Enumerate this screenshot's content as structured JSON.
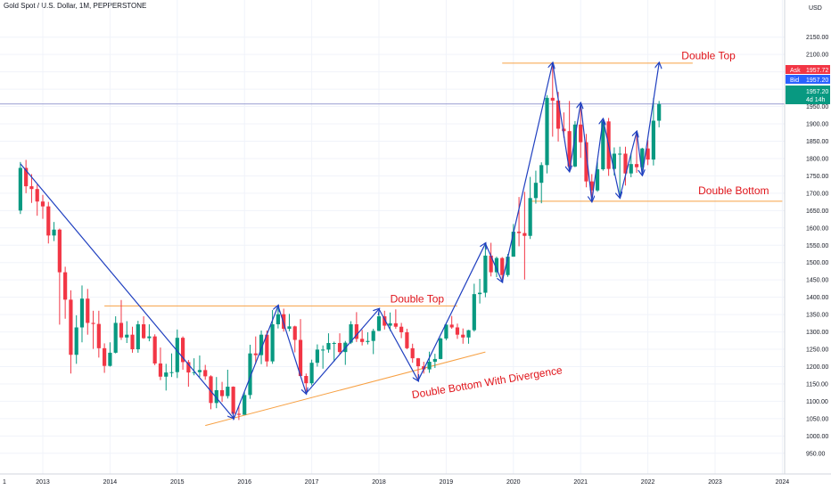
{
  "header": {
    "title": "Gold Spot / U.S. Dollar, 1M, PEPPERSTONE",
    "currency": "USD"
  },
  "colors": {
    "up": "#089981",
    "down": "#f23645",
    "trend": "#2040c0",
    "level": "#f7a043",
    "annotation": "#e0141a",
    "price_line": "#7b7fc4"
  },
  "quote_tags": {
    "ask_label": "Ask",
    "ask_value": "1957.72",
    "bid_label": "Bid",
    "bid_value": "1957.20",
    "last_value": "1957.20",
    "countdown": "4d 14h"
  },
  "annotations": {
    "double_top_2022": "Double Top",
    "double_bottom_2021": "Double Bottom",
    "double_top_2016": "Double Top",
    "double_bottom_divergence": "Double Bottom With Divergence"
  },
  "chart_data": {
    "type": "candlestick",
    "title": "Gold Spot / U.S. Dollar, 1M, PEPPERSTONE",
    "ylabel": "USD",
    "ylim": [
      930,
      2200
    ],
    "x_ticks": [
      "1",
      "2013",
      "2014",
      "2015",
      "2016",
      "2017",
      "2018",
      "2019",
      "2020",
      "2021",
      "2022",
      "2023",
      "2024"
    ],
    "y_ticks": [
      "2150.00",
      "2100.00",
      "2050.00",
      "2000.00",
      "1950.00",
      "1900.00",
      "1850.00",
      "1800.00",
      "1750.00",
      "1700.00",
      "1650.00",
      "1600.00",
      "1550.00",
      "1500.00",
      "1450.00",
      "1400.00",
      "1350.00",
      "1300.00",
      "1250.00",
      "1200.00",
      "1150.00",
      "1100.00",
      "1050.00",
      "1000.00",
      "950.00"
    ],
    "ohlc": [
      {
        "date": "2012-09",
        "open": 1650,
        "high": 1790,
        "low": 1640,
        "close": 1773
      },
      {
        "date": "2012-10",
        "open": 1773,
        "high": 1796,
        "low": 1700,
        "close": 1720
      },
      {
        "date": "2012-11",
        "open": 1720,
        "high": 1755,
        "low": 1672,
        "close": 1712
      },
      {
        "date": "2012-12",
        "open": 1712,
        "high": 1725,
        "low": 1635,
        "close": 1676
      },
      {
        "date": "2013-01",
        "open": 1676,
        "high": 1695,
        "low": 1626,
        "close": 1662
      },
      {
        "date": "2013-02",
        "open": 1662,
        "high": 1675,
        "low": 1555,
        "close": 1578
      },
      {
        "date": "2013-03",
        "open": 1578,
        "high": 1617,
        "low": 1562,
        "close": 1595
      },
      {
        "date": "2013-04",
        "open": 1595,
        "high": 1598,
        "low": 1321,
        "close": 1472
      },
      {
        "date": "2013-05",
        "open": 1472,
        "high": 1488,
        "low": 1338,
        "close": 1393
      },
      {
        "date": "2013-06",
        "open": 1393,
        "high": 1420,
        "low": 1180,
        "close": 1234
      },
      {
        "date": "2013-07",
        "open": 1234,
        "high": 1348,
        "low": 1208,
        "close": 1313
      },
      {
        "date": "2013-08",
        "open": 1313,
        "high": 1434,
        "low": 1270,
        "close": 1396
      },
      {
        "date": "2013-09",
        "open": 1396,
        "high": 1424,
        "low": 1292,
        "close": 1326
      },
      {
        "date": "2013-10",
        "open": 1326,
        "high": 1361,
        "low": 1251,
        "close": 1323
      },
      {
        "date": "2013-11",
        "open": 1323,
        "high": 1361,
        "low": 1226,
        "close": 1253
      },
      {
        "date": "2013-12",
        "open": 1253,
        "high": 1267,
        "low": 1182,
        "close": 1202
      },
      {
        "date": "2014-01",
        "open": 1202,
        "high": 1270,
        "low": 1200,
        "close": 1240
      },
      {
        "date": "2014-02",
        "open": 1240,
        "high": 1345,
        "low": 1238,
        "close": 1326
      },
      {
        "date": "2014-03",
        "open": 1326,
        "high": 1392,
        "low": 1277,
        "close": 1284
      },
      {
        "date": "2014-04",
        "open": 1284,
        "high": 1331,
        "low": 1268,
        "close": 1292
      },
      {
        "date": "2014-05",
        "open": 1292,
        "high": 1315,
        "low": 1240,
        "close": 1250
      },
      {
        "date": "2014-06",
        "open": 1250,
        "high": 1332,
        "low": 1240,
        "close": 1322
      },
      {
        "date": "2014-07",
        "open": 1322,
        "high": 1345,
        "low": 1280,
        "close": 1282
      },
      {
        "date": "2014-08",
        "open": 1282,
        "high": 1322,
        "low": 1273,
        "close": 1287
      },
      {
        "date": "2014-09",
        "open": 1287,
        "high": 1293,
        "low": 1204,
        "close": 1209
      },
      {
        "date": "2014-10",
        "open": 1209,
        "high": 1255,
        "low": 1161,
        "close": 1171
      },
      {
        "date": "2014-11",
        "open": 1171,
        "high": 1208,
        "low": 1131,
        "close": 1183
      },
      {
        "date": "2014-12",
        "open": 1183,
        "high": 1238,
        "low": 1170,
        "close": 1184
      },
      {
        "date": "2015-01",
        "open": 1184,
        "high": 1307,
        "low": 1167,
        "close": 1283
      },
      {
        "date": "2015-02",
        "open": 1283,
        "high": 1287,
        "low": 1191,
        "close": 1213
      },
      {
        "date": "2015-03",
        "open": 1213,
        "high": 1219,
        "low": 1142,
        "close": 1183
      },
      {
        "date": "2015-04",
        "open": 1183,
        "high": 1224,
        "low": 1175,
        "close": 1184
      },
      {
        "date": "2015-05",
        "open": 1184,
        "high": 1232,
        "low": 1170,
        "close": 1190
      },
      {
        "date": "2015-06",
        "open": 1190,
        "high": 1205,
        "low": 1162,
        "close": 1172
      },
      {
        "date": "2015-07",
        "open": 1172,
        "high": 1175,
        "low": 1077,
        "close": 1095
      },
      {
        "date": "2015-08",
        "open": 1095,
        "high": 1170,
        "low": 1080,
        "close": 1132
      },
      {
        "date": "2015-09",
        "open": 1132,
        "high": 1156,
        "low": 1098,
        "close": 1115
      },
      {
        "date": "2015-10",
        "open": 1115,
        "high": 1191,
        "low": 1108,
        "close": 1142
      },
      {
        "date": "2015-11",
        "open": 1142,
        "high": 1143,
        "low": 1052,
        "close": 1064
      },
      {
        "date": "2015-12",
        "open": 1064,
        "high": 1088,
        "low": 1046,
        "close": 1061
      },
      {
        "date": "2016-01",
        "open": 1061,
        "high": 1126,
        "low": 1061,
        "close": 1118
      },
      {
        "date": "2016-02",
        "open": 1118,
        "high": 1263,
        "low": 1107,
        "close": 1238
      },
      {
        "date": "2016-03",
        "open": 1238,
        "high": 1287,
        "low": 1208,
        "close": 1233
      },
      {
        "date": "2016-04",
        "open": 1233,
        "high": 1304,
        "low": 1207,
        "close": 1292
      },
      {
        "date": "2016-05",
        "open": 1292,
        "high": 1304,
        "low": 1200,
        "close": 1215
      },
      {
        "date": "2016-06",
        "open": 1215,
        "high": 1363,
        "low": 1208,
        "close": 1322
      },
      {
        "date": "2016-07",
        "open": 1322,
        "high": 1375,
        "low": 1310,
        "close": 1351
      },
      {
        "date": "2016-08",
        "open": 1351,
        "high": 1367,
        "low": 1301,
        "close": 1309
      },
      {
        "date": "2016-09",
        "open": 1309,
        "high": 1352,
        "low": 1302,
        "close": 1316
      },
      {
        "date": "2016-10",
        "open": 1316,
        "high": 1318,
        "low": 1241,
        "close": 1277
      },
      {
        "date": "2016-11",
        "open": 1277,
        "high": 1337,
        "low": 1171,
        "close": 1173
      },
      {
        "date": "2016-12",
        "open": 1173,
        "high": 1180,
        "low": 1123,
        "close": 1152
      },
      {
        "date": "2017-01",
        "open": 1152,
        "high": 1220,
        "low": 1146,
        "close": 1211
      },
      {
        "date": "2017-02",
        "open": 1211,
        "high": 1264,
        "low": 1200,
        "close": 1249
      },
      {
        "date": "2017-03",
        "open": 1249,
        "high": 1261,
        "low": 1194,
        "close": 1249
      },
      {
        "date": "2017-04",
        "open": 1249,
        "high": 1296,
        "low": 1240,
        "close": 1268
      },
      {
        "date": "2017-05",
        "open": 1268,
        "high": 1272,
        "low": 1214,
        "close": 1268
      },
      {
        "date": "2017-06",
        "open": 1268,
        "high": 1296,
        "low": 1236,
        "close": 1242
      },
      {
        "date": "2017-07",
        "open": 1242,
        "high": 1274,
        "low": 1205,
        "close": 1269
      },
      {
        "date": "2017-08",
        "open": 1269,
        "high": 1331,
        "low": 1265,
        "close": 1322
      },
      {
        "date": "2017-09",
        "open": 1322,
        "high": 1357,
        "low": 1271,
        "close": 1280
      },
      {
        "date": "2017-10",
        "open": 1280,
        "high": 1306,
        "low": 1261,
        "close": 1271
      },
      {
        "date": "2017-11",
        "open": 1271,
        "high": 1299,
        "low": 1264,
        "close": 1274
      },
      {
        "date": "2017-12",
        "open": 1274,
        "high": 1309,
        "low": 1236,
        "close": 1303
      },
      {
        "date": "2018-01",
        "open": 1303,
        "high": 1366,
        "low": 1302,
        "close": 1345
      },
      {
        "date": "2018-02",
        "open": 1345,
        "high": 1361,
        "low": 1307,
        "close": 1318
      },
      {
        "date": "2018-03",
        "open": 1318,
        "high": 1356,
        "low": 1303,
        "close": 1325
      },
      {
        "date": "2018-04",
        "open": 1325,
        "high": 1365,
        "low": 1309,
        "close": 1315
      },
      {
        "date": "2018-05",
        "open": 1315,
        "high": 1326,
        "low": 1282,
        "close": 1299
      },
      {
        "date": "2018-06",
        "open": 1299,
        "high": 1309,
        "low": 1250,
        "close": 1253
      },
      {
        "date": "2018-07",
        "open": 1253,
        "high": 1266,
        "low": 1211,
        "close": 1224
      },
      {
        "date": "2018-08",
        "open": 1224,
        "high": 1225,
        "low": 1160,
        "close": 1201
      },
      {
        "date": "2018-09",
        "open": 1201,
        "high": 1214,
        "low": 1180,
        "close": 1192
      },
      {
        "date": "2018-10",
        "open": 1192,
        "high": 1243,
        "low": 1182,
        "close": 1214
      },
      {
        "date": "2018-11",
        "open": 1214,
        "high": 1237,
        "low": 1196,
        "close": 1222
      },
      {
        "date": "2018-12",
        "open": 1222,
        "high": 1284,
        "low": 1221,
        "close": 1281
      },
      {
        "date": "2019-01",
        "open": 1281,
        "high": 1326,
        "low": 1276,
        "close": 1321
      },
      {
        "date": "2019-02",
        "open": 1321,
        "high": 1346,
        "low": 1309,
        "close": 1313
      },
      {
        "date": "2019-03",
        "open": 1313,
        "high": 1324,
        "low": 1280,
        "close": 1292
      },
      {
        "date": "2019-04",
        "open": 1292,
        "high": 1310,
        "low": 1266,
        "close": 1284
      },
      {
        "date": "2019-05",
        "open": 1284,
        "high": 1306,
        "low": 1266,
        "close": 1305
      },
      {
        "date": "2019-06",
        "open": 1305,
        "high": 1439,
        "low": 1301,
        "close": 1409
      },
      {
        "date": "2019-07",
        "open": 1409,
        "high": 1453,
        "low": 1382,
        "close": 1413
      },
      {
        "date": "2019-08",
        "open": 1413,
        "high": 1555,
        "low": 1400,
        "close": 1520
      },
      {
        "date": "2019-09",
        "open": 1520,
        "high": 1557,
        "low": 1460,
        "close": 1472
      },
      {
        "date": "2019-10",
        "open": 1472,
        "high": 1517,
        "low": 1458,
        "close": 1513
      },
      {
        "date": "2019-11",
        "open": 1513,
        "high": 1516,
        "low": 1445,
        "close": 1464
      },
      {
        "date": "2019-12",
        "open": 1464,
        "high": 1525,
        "low": 1459,
        "close": 1517
      },
      {
        "date": "2020-01",
        "open": 1517,
        "high": 1611,
        "low": 1517,
        "close": 1589
      },
      {
        "date": "2020-02",
        "open": 1589,
        "high": 1689,
        "low": 1547,
        "close": 1585
      },
      {
        "date": "2020-03",
        "open": 1585,
        "high": 1704,
        "low": 1451,
        "close": 1577
      },
      {
        "date": "2020-04",
        "open": 1577,
        "high": 1747,
        "low": 1568,
        "close": 1686
      },
      {
        "date": "2020-05",
        "open": 1686,
        "high": 1765,
        "low": 1670,
        "close": 1730
      },
      {
        "date": "2020-06",
        "open": 1730,
        "high": 1789,
        "low": 1671,
        "close": 1781
      },
      {
        "date": "2020-07",
        "open": 1781,
        "high": 1983,
        "low": 1757,
        "close": 1975
      },
      {
        "date": "2020-08",
        "open": 1975,
        "high": 2075,
        "low": 1863,
        "close": 1967
      },
      {
        "date": "2020-09",
        "open": 1967,
        "high": 1992,
        "low": 1849,
        "close": 1886
      },
      {
        "date": "2020-10",
        "open": 1886,
        "high": 1933,
        "low": 1860,
        "close": 1879
      },
      {
        "date": "2020-11",
        "open": 1879,
        "high": 1966,
        "low": 1764,
        "close": 1777
      },
      {
        "date": "2020-12",
        "open": 1777,
        "high": 1908,
        "low": 1775,
        "close": 1898
      },
      {
        "date": "2021-01",
        "open": 1898,
        "high": 1959,
        "low": 1802,
        "close": 1847
      },
      {
        "date": "2021-02",
        "open": 1847,
        "high": 1871,
        "low": 1717,
        "close": 1734
      },
      {
        "date": "2021-03",
        "open": 1734,
        "high": 1755,
        "low": 1677,
        "close": 1708
      },
      {
        "date": "2021-04",
        "open": 1708,
        "high": 1798,
        "low": 1704,
        "close": 1769
      },
      {
        "date": "2021-05",
        "open": 1769,
        "high": 1913,
        "low": 1765,
        "close": 1907
      },
      {
        "date": "2021-06",
        "open": 1907,
        "high": 1917,
        "low": 1750,
        "close": 1770
      },
      {
        "date": "2021-07",
        "open": 1770,
        "high": 1832,
        "low": 1751,
        "close": 1814
      },
      {
        "date": "2021-08",
        "open": 1814,
        "high": 1834,
        "low": 1688,
        "close": 1814
      },
      {
        "date": "2021-09",
        "open": 1814,
        "high": 1834,
        "low": 1722,
        "close": 1757
      },
      {
        "date": "2021-10",
        "open": 1757,
        "high": 1814,
        "low": 1746,
        "close": 1784
      },
      {
        "date": "2021-11",
        "open": 1784,
        "high": 1877,
        "low": 1759,
        "close": 1775
      },
      {
        "date": "2021-12",
        "open": 1775,
        "high": 1831,
        "low": 1753,
        "close": 1829
      },
      {
        "date": "2022-01",
        "open": 1829,
        "high": 1853,
        "low": 1781,
        "close": 1797
      },
      {
        "date": "2022-02",
        "open": 1797,
        "high": 1974,
        "low": 1780,
        "close": 1909
      },
      {
        "date": "2022-03",
        "open": 1909,
        "high": 1966,
        "low": 1890,
        "close": 1957.2
      }
    ],
    "levels": [
      {
        "name": "Double Top",
        "price": 2075,
        "from": "2019-11",
        "to": "2022-09"
      },
      {
        "name": "Double Bottom",
        "price": 1677,
        "from": "2020-04",
        "to": "2024-01"
      },
      {
        "name": "Double Top",
        "price": 1375,
        "from": "2013-12",
        "to": "2019-03"
      }
    ],
    "support_trendline": {
      "name": "Double Bottom With Divergence",
      "start": [
        "2015-06",
        1030
      ],
      "end": [
        "2019-08",
        1242
      ]
    },
    "trend_paths": [
      [
        [
          "2012-09",
          1785
        ],
        [
          "2015-11",
          1052
        ]
      ],
      [
        [
          "2015-11",
          1046
        ],
        [
          "2016-07",
          1375
        ]
      ],
      [
        [
          "2016-07",
          1375
        ],
        [
          "2016-12",
          1123
        ]
      ],
      [
        [
          "2016-12",
          1123
        ],
        [
          "2018-01",
          1366
        ]
      ],
      [
        [
          "2018-01",
          1366
        ],
        [
          "2018-08",
          1160
        ]
      ],
      [
        [
          "2018-08",
          1160
        ],
        [
          "2019-08",
          1555
        ]
      ],
      [
        [
          "2019-08",
          1555
        ],
        [
          "2019-11",
          1445
        ]
      ],
      [
        [
          "2019-11",
          1445
        ],
        [
          "2020-08",
          2075
        ]
      ],
      [
        [
          "2020-08",
          2075
        ],
        [
          "2020-11",
          1764
        ]
      ],
      [
        [
          "2020-11",
          1764
        ],
        [
          "2021-01",
          1959
        ]
      ],
      [
        [
          "2021-01",
          1959
        ],
        [
          "2021-03",
          1677
        ]
      ],
      [
        [
          "2021-03",
          1677
        ],
        [
          "2021-05",
          1913
        ]
      ],
      [
        [
          "2021-05",
          1913
        ],
        [
          "2021-08",
          1688
        ]
      ],
      [
        [
          "2021-08",
          1688
        ],
        [
          "2021-11",
          1877
        ]
      ],
      [
        [
          "2021-11",
          1877
        ],
        [
          "2021-12",
          1753
        ]
      ],
      [
        [
          "2021-12",
          1753
        ],
        [
          "2022-03",
          2075
        ]
      ]
    ],
    "current_price": 1957.2
  }
}
